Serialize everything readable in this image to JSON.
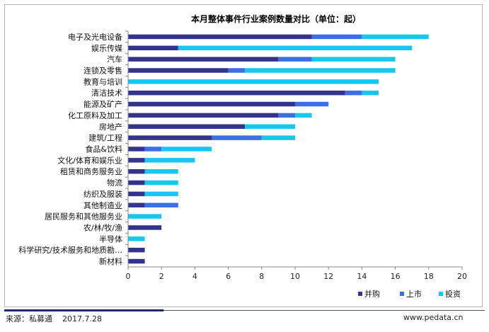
{
  "chart_data": {
    "type": "bar",
    "orientation": "horizontal",
    "stacked": true,
    "title": "本月整体事件行业案例数量对比（单位：起）",
    "categories": [
      "电子及光电设备",
      "娱乐传媒",
      "汽车",
      "连锁及零售",
      "教育与培训",
      "清洁技术",
      "能源及矿产",
      "化工原料及加工",
      "房地产",
      "建筑/工程",
      "食品&饮料",
      "文化/体育和娱乐业",
      "租赁和商务服务业",
      "物流",
      "纺织及服装",
      "其他制造业",
      "居民服务和其他服务业",
      "农/林/牧/渔",
      "半导体",
      "科学研究/技术服务和地质勘…",
      "新材料"
    ],
    "series": [
      {
        "name": "并购",
        "color": "#34348c",
        "values": [
          11,
          3,
          9,
          6,
          0,
          13,
          10,
          9,
          7,
          5,
          1,
          1,
          1,
          1,
          1,
          1,
          0,
          2,
          0,
          1,
          1
        ]
      },
      {
        "name": "上市",
        "color": "#3d6ee8",
        "values": [
          3,
          0,
          2,
          1,
          0,
          1,
          2,
          1,
          0,
          3,
          1,
          0,
          0,
          0,
          0,
          2,
          0,
          0,
          0,
          0,
          0
        ]
      },
      {
        "name": "投资",
        "color": "#16c8f0",
        "values": [
          4,
          14,
          5,
          9,
          15,
          1,
          0,
          1,
          3,
          2,
          3,
          3,
          2,
          2,
          2,
          0,
          2,
          0,
          1,
          0,
          0
        ]
      }
    ],
    "xlim": [
      0,
      20
    ],
    "xticks": [
      "0",
      "2",
      "4",
      "6",
      "8",
      "10",
      "12",
      "14",
      "16",
      "18",
      "20"
    ],
    "grid": false,
    "legend_position": "bottom-right"
  },
  "footer": {
    "source": "来源：私募通    2017.7.28",
    "website": "www.pedata.cn"
  }
}
